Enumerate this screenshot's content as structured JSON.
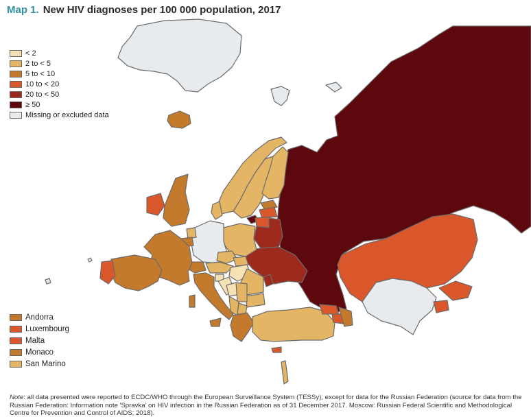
{
  "title": {
    "prefix": "Map 1.",
    "text": "New HIV diagnoses per 100 000 population, 2017"
  },
  "legend": [
    {
      "label": "< 2",
      "color": "#f6e3b5"
    },
    {
      "label": "2 to < 5",
      "color": "#e4b565"
    },
    {
      "label": "5 to < 10",
      "color": "#c47a2c"
    },
    {
      "label": "10 to < 20",
      "color": "#d9572a"
    },
    {
      "label": "20 to < 50",
      "color": "#9e2a1e"
    },
    {
      "label": "≥ 50",
      "color": "#5c080d"
    },
    {
      "label": "Missing or excluded data",
      "color": "#e8ebee"
    }
  ],
  "small_countries": [
    {
      "label": "Andorra",
      "color": "#c47a2c"
    },
    {
      "label": "Luxembourg",
      "color": "#d9572a"
    },
    {
      "label": "Malta",
      "color": "#d9572a"
    },
    {
      "label": "Monaco",
      "color": "#c47a2c"
    },
    {
      "label": "San Marino",
      "color": "#e4b565"
    }
  ],
  "note": {
    "label": "Note",
    "text": ": all data presented were reported to ECDC/WHO through the European Surveillance System (TESSy), except for data for the Russian Federation (source for data from the Russian Federation: Information note 'Spravka' on HIV infection in the Russian Federation as of 31 December 2017. Moscow: Russian Federal Scientific and Methodological Centre for Prevention and Control of AIDS; 2018)."
  },
  "colors": {
    "border": "#6b6b6b",
    "water": "#ffffff"
  }
}
